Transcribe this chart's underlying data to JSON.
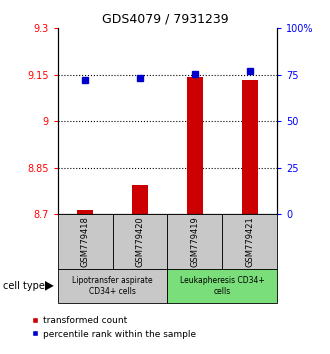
{
  "title": "GDS4079 / 7931239",
  "samples": [
    "GSM779418",
    "GSM779420",
    "GSM779419",
    "GSM779421"
  ],
  "red_values": [
    8.714,
    8.793,
    9.142,
    9.132
  ],
  "blue_values": [
    0.72,
    0.735,
    0.755,
    0.768
  ],
  "ylim_left": [
    8.7,
    9.3
  ],
  "ylim_right": [
    0.0,
    1.0
  ],
  "yticks_left": [
    8.7,
    8.85,
    9.0,
    9.15,
    9.3
  ],
  "yticks_left_labels": [
    "8.7",
    "8.85",
    "9",
    "9.15",
    "9.3"
  ],
  "yticks_right": [
    0.0,
    0.25,
    0.5,
    0.75,
    1.0
  ],
  "yticks_right_labels": [
    "0",
    "25",
    "50",
    "75",
    "100%"
  ],
  "hlines": [
    8.85,
    9.0,
    9.15
  ],
  "groups": [
    {
      "label": "Lipotransfer aspirate\nCD34+ cells",
      "samples": [
        0,
        1
      ],
      "color": "#c8c8c8"
    },
    {
      "label": "Leukapheresis CD34+\ncells",
      "samples": [
        2,
        3
      ],
      "color": "#7adf7a"
    }
  ],
  "bar_color": "#cc0000",
  "dot_color": "#0000cc",
  "bar_bottom": 8.7,
  "bar_width": 0.3,
  "legend_red": "transformed count",
  "legend_blue": "percentile rank within the sample",
  "cell_type_label": "cell type"
}
